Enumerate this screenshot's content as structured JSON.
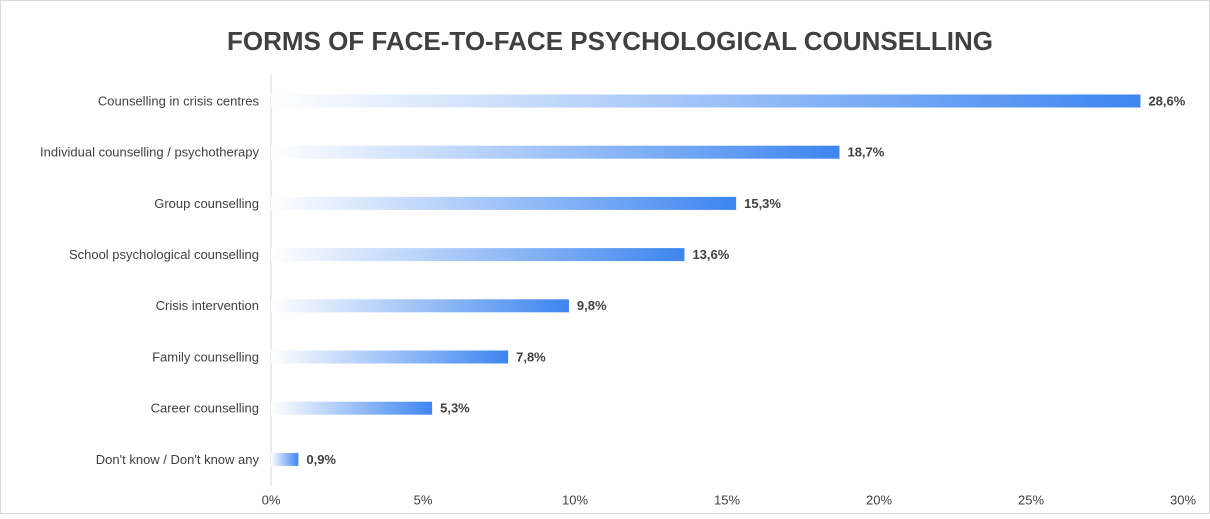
{
  "chart_data": {
    "type": "bar",
    "orientation": "horizontal",
    "title": "FORMS OF FACE-TO-FACE PSYCHOLOGICAL COUNSELLING",
    "categories": [
      "Counselling in crisis centres",
      "Individual counselling / psychotherapy",
      "Group counselling",
      "School psychological counselling",
      "Crisis intervention",
      "Family counselling",
      "Career counselling",
      "Don't know / Don't know any"
    ],
    "values": [
      28.6,
      18.7,
      15.3,
      13.6,
      9.8,
      7.8,
      5.3,
      0.9
    ],
    "value_labels": [
      "28,6%",
      "18,7%",
      "15,3%",
      "13,6%",
      "9,8%",
      "7,8%",
      "5,3%",
      "0,9%"
    ],
    "color": "#3d85f0",
    "xlim": [
      0,
      30
    ],
    "xticks": [
      {
        "value": 0,
        "label": "0%"
      },
      {
        "value": 5,
        "label": "5%"
      },
      {
        "value": 10,
        "label": "10%"
      },
      {
        "value": 15,
        "label": "15%"
      },
      {
        "value": 20,
        "label": "20%"
      },
      {
        "value": 25,
        "label": "25%"
      },
      {
        "value": 30,
        "label": "30%"
      }
    ],
    "grid": false
  }
}
